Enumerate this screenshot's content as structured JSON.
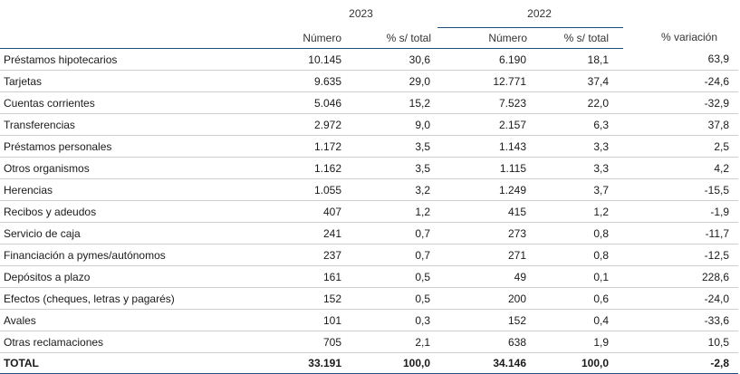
{
  "header": {
    "year_2023": "2023",
    "year_2022": "2022",
    "variation": "% variación",
    "col_number_2023": "Número",
    "col_pct_2023": "% s/ total",
    "col_number_2022": "Número",
    "col_pct_2022": "% s/ total"
  },
  "rows": [
    {
      "concept": "Préstamos hipotecarios",
      "n2023": "10.145",
      "p2023": "30,6",
      "n2022": "6.190",
      "p2022": "18,1",
      "variation": "63,9"
    },
    {
      "concept": "Tarjetas",
      "n2023": "9.635",
      "p2023": "29,0",
      "n2022": "12.771",
      "p2022": "37,4",
      "variation": "-24,6"
    },
    {
      "concept": "Cuentas corrientes",
      "n2023": "5.046",
      "p2023": "15,2",
      "n2022": "7.523",
      "p2022": "22,0",
      "variation": "-32,9"
    },
    {
      "concept": "Transferencias",
      "n2023": "2.972",
      "p2023": "9,0",
      "n2022": "2.157",
      "p2022": "6,3",
      "variation": "37,8"
    },
    {
      "concept": "Préstamos personales",
      "n2023": "1.172",
      "p2023": "3,5",
      "n2022": "1.143",
      "p2022": "3,3",
      "variation": "2,5"
    },
    {
      "concept": "Otros organismos",
      "n2023": "1.162",
      "p2023": "3,5",
      "n2022": "1.115",
      "p2022": "3,3",
      "variation": "4,2"
    },
    {
      "concept": "Herencias",
      "n2023": "1.055",
      "p2023": "3,2",
      "n2022": "1.249",
      "p2022": "3,7",
      "variation": "-15,5"
    },
    {
      "concept": "Recibos y adeudos",
      "n2023": "407",
      "p2023": "1,2",
      "n2022": "415",
      "p2022": "1,2",
      "variation": "-1,9"
    },
    {
      "concept": "Servicio de caja",
      "n2023": "241",
      "p2023": "0,7",
      "n2022": "273",
      "p2022": "0,8",
      "variation": "-11,7"
    },
    {
      "concept": "Financiación a pymes/autónomos",
      "n2023": "237",
      "p2023": "0,7",
      "n2022": "271",
      "p2022": "0,8",
      "variation": "-12,5"
    },
    {
      "concept": "Depósitos a plazo",
      "n2023": "161",
      "p2023": "0,5",
      "n2022": "49",
      "p2022": "0,1",
      "variation": "228,6"
    },
    {
      "concept": "Efectos (cheques, letras y pagarés)",
      "n2023": "152",
      "p2023": "0,5",
      "n2022": "200",
      "p2022": "0,6",
      "variation": "-24,0"
    },
    {
      "concept": "Avales",
      "n2023": "101",
      "p2023": "0,3",
      "n2022": "152",
      "p2022": "0,4",
      "variation": "-33,6"
    },
    {
      "concept": "Otras reclamaciones",
      "n2023": "705",
      "p2023": "2,1",
      "n2022": "638",
      "p2022": "1,9",
      "variation": "10,5"
    }
  ],
  "total": {
    "concept": "TOTAL",
    "n2023": "33.191",
    "p2023": "100,0",
    "n2022": "34.146",
    "p2022": "100,0",
    "variation": "-2,8"
  }
}
